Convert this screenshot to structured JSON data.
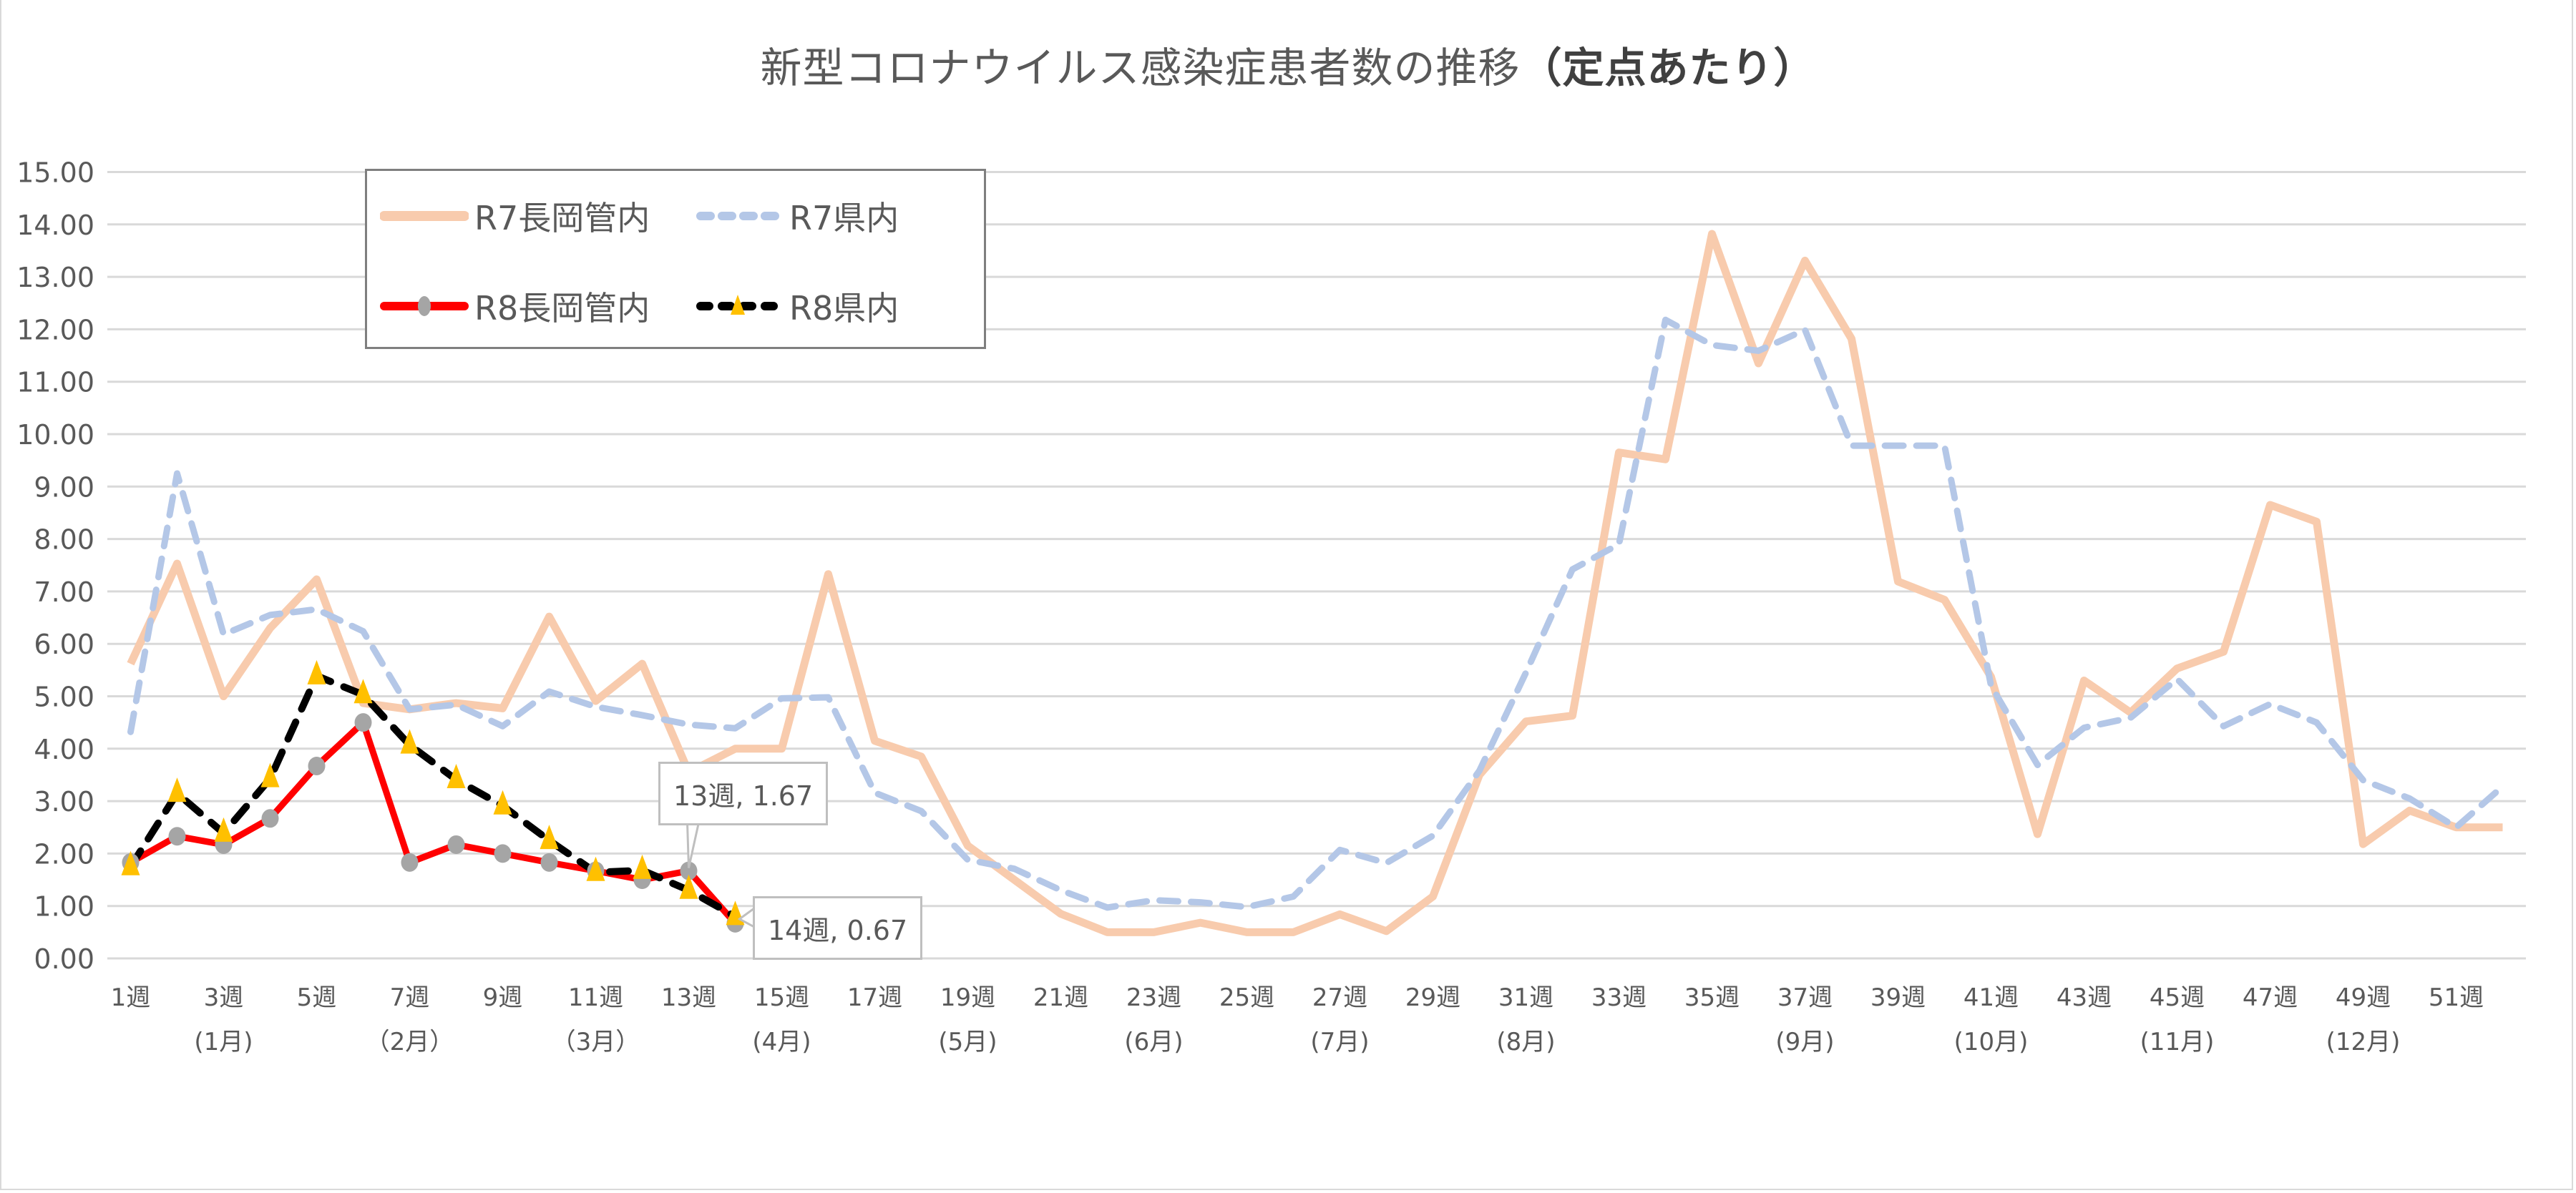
{
  "chart_data": {
    "type": "line",
    "title": "新型コロナウイルス感染症患者数の推移",
    "title_bold_suffix": "（定点あたり）",
    "xlabel": "",
    "ylabel": "",
    "ylim": [
      0,
      15
    ],
    "y_ticks": [
      "0.00",
      "1.00",
      "2.00",
      "3.00",
      "4.00",
      "5.00",
      "6.00",
      "7.00",
      "8.00",
      "9.00",
      "10.00",
      "11.00",
      "12.00",
      "13.00",
      "14.00",
      "15.00"
    ],
    "grid": true,
    "legend_position": "upper-left (inside plot)",
    "x_tick_labels": [
      {
        "week": 1,
        "label": "1週"
      },
      {
        "week": 3,
        "label": "3週",
        "month": "(1月)"
      },
      {
        "week": 5,
        "label": "5週"
      },
      {
        "week": 7,
        "label": "7週",
        "month": "（2月）"
      },
      {
        "week": 9,
        "label": "9週"
      },
      {
        "week": 11,
        "label": "11週",
        "month": "（3月）"
      },
      {
        "week": 13,
        "label": "13週"
      },
      {
        "week": 15,
        "label": "15週",
        "month": "(4月)"
      },
      {
        "week": 17,
        "label": "17週"
      },
      {
        "week": 19,
        "label": "19週",
        "month": "(5月)"
      },
      {
        "week": 21,
        "label": "21週"
      },
      {
        "week": 23,
        "label": "23週",
        "month": "(6月)"
      },
      {
        "week": 25,
        "label": "25週"
      },
      {
        "week": 27,
        "label": "27週",
        "month": "(7月)"
      },
      {
        "week": 29,
        "label": "29週"
      },
      {
        "week": 31,
        "label": "31週",
        "month": "(8月)"
      },
      {
        "week": 33,
        "label": "33週"
      },
      {
        "week": 35,
        "label": "35週"
      },
      {
        "week": 37,
        "label": "37週",
        "month": "(9月)"
      },
      {
        "week": 39,
        "label": "39週"
      },
      {
        "week": 41,
        "label": "41週",
        "month": "(10月)"
      },
      {
        "week": 43,
        "label": "43週"
      },
      {
        "week": 45,
        "label": "45週",
        "month": "(11月)"
      },
      {
        "week": 47,
        "label": "47週"
      },
      {
        "week": 49,
        "label": "49週",
        "month": "(12月)"
      },
      {
        "week": 51,
        "label": "51週"
      }
    ],
    "x": [
      1,
      2,
      3,
      4,
      5,
      6,
      7,
      8,
      9,
      10,
      11,
      12,
      13,
      14,
      15,
      16,
      17,
      18,
      19,
      20,
      21,
      22,
      23,
      24,
      25,
      26,
      27,
      28,
      29,
      30,
      31,
      32,
      33,
      34,
      35,
      36,
      37,
      38,
      39,
      40,
      41,
      42,
      43,
      44,
      45,
      46,
      47,
      48,
      49,
      50,
      51,
      52
    ],
    "series": [
      {
        "name": "R7長岡管内",
        "color": "#f8cbad",
        "style": "solid",
        "marker": "none",
        "values": [
          5.62,
          7.53,
          5.0,
          6.3,
          7.23,
          4.87,
          4.75,
          4.87,
          4.77,
          6.52,
          4.91,
          5.62,
          3.55,
          4.0,
          4.0,
          7.33,
          4.15,
          3.85,
          2.15,
          1.5,
          0.85,
          0.5,
          0.5,
          0.68,
          0.5,
          0.5,
          0.84,
          0.52,
          1.18,
          3.5,
          4.52,
          4.63,
          9.65,
          9.52,
          13.82,
          11.35,
          13.31,
          11.82,
          7.19,
          6.84,
          5.37,
          2.37,
          5.3,
          4.69,
          5.53,
          5.85,
          8.65,
          8.33,
          2.18,
          2.82,
          2.5,
          2.5
        ]
      },
      {
        "name": "R7県内",
        "color": "#b4c7e7",
        "style": "dashed",
        "marker": "none",
        "values": [
          4.32,
          9.25,
          6.18,
          6.55,
          6.66,
          6.24,
          4.75,
          4.84,
          4.43,
          5.09,
          4.8,
          4.64,
          4.46,
          4.39,
          4.96,
          4.98,
          3.16,
          2.81,
          1.88,
          1.71,
          1.3,
          0.97,
          1.11,
          1.07,
          0.98,
          1.18,
          2.07,
          1.82,
          2.34,
          3.58,
          5.45,
          7.42,
          7.9,
          12.18,
          11.7,
          11.59,
          11.99,
          9.78,
          9.78,
          9.78,
          5.2,
          3.69,
          4.4,
          4.59,
          5.33,
          4.43,
          4.85,
          4.5,
          3.4,
          3.05,
          2.5,
          3.28
        ]
      },
      {
        "name": "R8長岡管内",
        "color": "#ff0000",
        "style": "solid",
        "marker": "circle",
        "marker_color": "#a5a5a5",
        "values": [
          1.83,
          2.33,
          2.17,
          2.67,
          3.67,
          4.5,
          1.83,
          2.17,
          2.0,
          1.83,
          1.67,
          1.5,
          1.67,
          0.67
        ]
      },
      {
        "name": "R8県内",
        "color": "#000000",
        "style": "dashed",
        "marker": "triangle",
        "marker_color": "#ffc000",
        "values": [
          1.75,
          3.15,
          2.39,
          3.43,
          5.39,
          5.03,
          4.07,
          3.41,
          2.91,
          2.25,
          1.64,
          1.68,
          1.3,
          0.8
        ]
      }
    ],
    "annotations": [
      {
        "series": "R8長岡管内",
        "week": 13,
        "text": "13週, 1.67"
      },
      {
        "series": "R8長岡管内",
        "week": 14,
        "text": "14週, 0.67"
      }
    ]
  },
  "title": {
    "main": "新型コロナウイルス感染症患者数の推移",
    "bold": "（定点あたり）"
  },
  "legend": {
    "items": [
      {
        "label": "R7長岡管内"
      },
      {
        "label": "R7県内"
      },
      {
        "label": "R8長岡管内"
      },
      {
        "label": "R8県内"
      }
    ]
  },
  "callouts": {
    "week13": "13週, 1.67",
    "week14": "14週, 0.67"
  }
}
